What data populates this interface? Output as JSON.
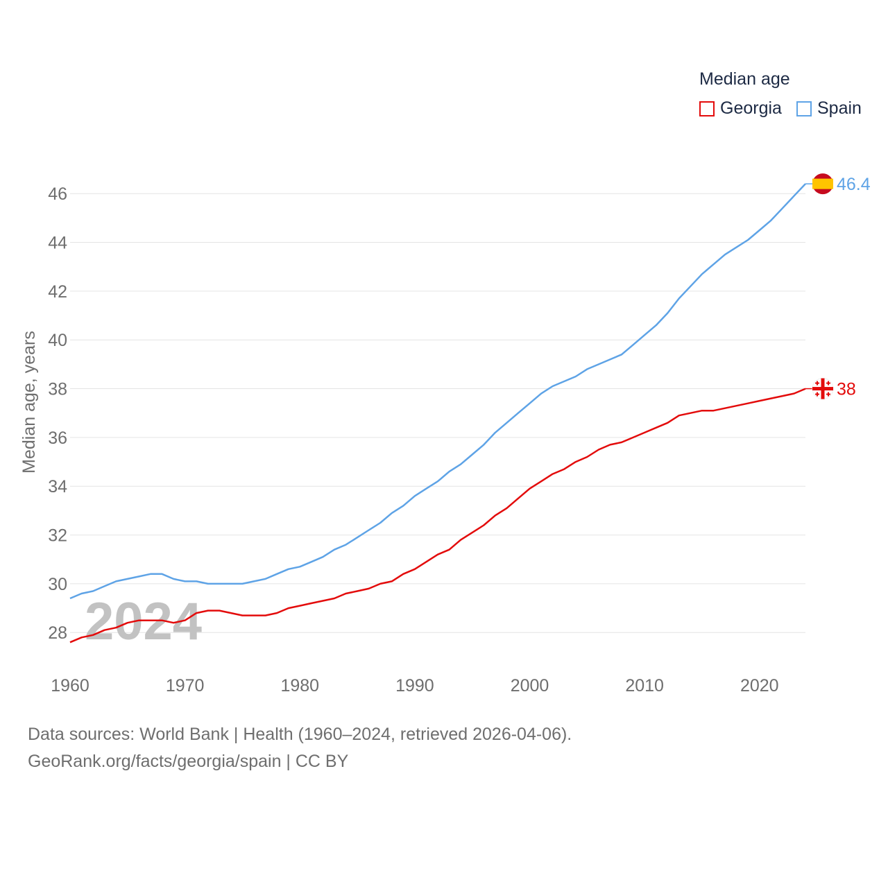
{
  "chart_data": {
    "type": "line",
    "title": "Median age",
    "ylabel": "Median age, years",
    "xlabel": "",
    "year_watermark": "2024",
    "xlim": [
      1960,
      2024
    ],
    "ylim": [
      26.5,
      47.2
    ],
    "x_ticks": [
      1960,
      1970,
      1980,
      1990,
      2000,
      2010,
      2020
    ],
    "y_ticks": [
      28,
      30,
      32,
      34,
      36,
      38,
      40,
      42,
      44,
      46
    ],
    "grid": true,
    "legend_position": "top-right",
    "series": [
      {
        "name": "Georgia",
        "color": "#e30b0b",
        "end_label": "38",
        "flag_icon": "georgia-flag-icon",
        "x": [
          1960,
          1961,
          1962,
          1963,
          1964,
          1965,
          1966,
          1967,
          1968,
          1969,
          1970,
          1971,
          1972,
          1973,
          1974,
          1975,
          1976,
          1977,
          1978,
          1979,
          1980,
          1981,
          1982,
          1983,
          1984,
          1985,
          1986,
          1987,
          1988,
          1989,
          1990,
          1991,
          1992,
          1993,
          1994,
          1995,
          1996,
          1997,
          1998,
          1999,
          2000,
          2001,
          2002,
          2003,
          2004,
          2005,
          2006,
          2007,
          2008,
          2009,
          2010,
          2011,
          2012,
          2013,
          2014,
          2015,
          2016,
          2017,
          2018,
          2019,
          2020,
          2021,
          2022,
          2023,
          2024
        ],
        "values": [
          27.6,
          27.8,
          27.9,
          28.1,
          28.2,
          28.4,
          28.5,
          28.5,
          28.5,
          28.4,
          28.5,
          28.8,
          28.9,
          28.9,
          28.8,
          28.7,
          28.7,
          28.7,
          28.8,
          29.0,
          29.1,
          29.2,
          29.3,
          29.4,
          29.6,
          29.7,
          29.8,
          30.0,
          30.1,
          30.4,
          30.6,
          30.9,
          31.2,
          31.4,
          31.8,
          32.1,
          32.4,
          32.8,
          33.1,
          33.5,
          33.9,
          34.2,
          34.5,
          34.7,
          35.0,
          35.2,
          35.5,
          35.7,
          35.8,
          36.0,
          36.2,
          36.4,
          36.6,
          36.9,
          37.0,
          37.1,
          37.1,
          37.2,
          37.3,
          37.4,
          37.5,
          37.6,
          37.7,
          37.8,
          38.0
        ]
      },
      {
        "name": "Spain",
        "color": "#5ea3e6",
        "end_label": "46.4",
        "flag_icon": "spain-flag-icon",
        "x": [
          1960,
          1961,
          1962,
          1963,
          1964,
          1965,
          1966,
          1967,
          1968,
          1969,
          1970,
          1971,
          1972,
          1973,
          1974,
          1975,
          1976,
          1977,
          1978,
          1979,
          1980,
          1981,
          1982,
          1983,
          1984,
          1985,
          1986,
          1987,
          1988,
          1989,
          1990,
          1991,
          1992,
          1993,
          1994,
          1995,
          1996,
          1997,
          1998,
          1999,
          2000,
          2001,
          2002,
          2003,
          2004,
          2005,
          2006,
          2007,
          2008,
          2009,
          2010,
          2011,
          2012,
          2013,
          2014,
          2015,
          2016,
          2017,
          2018,
          2019,
          2020,
          2021,
          2022,
          2023,
          2024
        ],
        "values": [
          29.4,
          29.6,
          29.7,
          29.9,
          30.1,
          30.2,
          30.3,
          30.4,
          30.4,
          30.2,
          30.1,
          30.1,
          30.0,
          30.0,
          30.0,
          30.0,
          30.1,
          30.2,
          30.4,
          30.6,
          30.7,
          30.9,
          31.1,
          31.4,
          31.6,
          31.9,
          32.2,
          32.5,
          32.9,
          33.2,
          33.6,
          33.9,
          34.2,
          34.6,
          34.9,
          35.3,
          35.7,
          36.2,
          36.6,
          37.0,
          37.4,
          37.8,
          38.1,
          38.3,
          38.5,
          38.8,
          39.0,
          39.2,
          39.4,
          39.8,
          40.2,
          40.6,
          41.1,
          41.7,
          42.2,
          42.7,
          43.1,
          43.5,
          43.8,
          44.1,
          44.5,
          44.9,
          45.4,
          45.9,
          46.4
        ]
      }
    ]
  },
  "footer": {
    "sources": "Data sources: World Bank | Health (1960–2024, retrieved 2026-04-06).",
    "attribution": "GeoRank.org/facts/georgia/spain | CC BY"
  }
}
